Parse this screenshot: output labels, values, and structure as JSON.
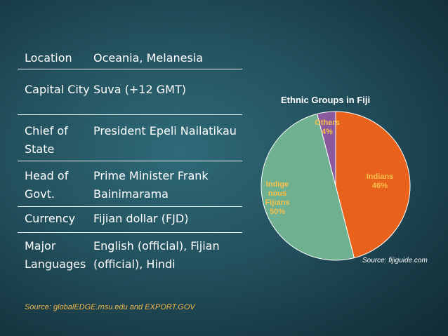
{
  "info": {
    "rows": [
      {
        "label": "Location",
        "value": "Oceania, Melanesia"
      },
      {
        "label": "Capital City",
        "value": "Suva (+12 GMT)"
      },
      {
        "label": "Chief of State",
        "value": "President Epeli Nailatikau"
      },
      {
        "label": "Head of Govt.",
        "value": "Prime Minister Frank Bainimarama"
      },
      {
        "label": "Currency",
        "value": "Fijian dollar (FJD)"
      },
      {
        "label": "Major Languages",
        "value": "English (official), Fijian (official), Hindi"
      }
    ],
    "source": "Source: globalEDGE.msu.edu and EXPORT.GOV"
  },
  "chart_data": {
    "type": "pie",
    "title": "Ethnic Groups in Fiji",
    "slices": [
      {
        "label": "Indians",
        "value": 46,
        "display": "46%",
        "color": "#e8621c",
        "label_color": "#f6c04a"
      },
      {
        "label": "Indigenous Fijians",
        "value": 50,
        "display": "50%",
        "color": "#6fb091",
        "label_color": "#f6c04a"
      },
      {
        "label": "Others",
        "value": 4,
        "display": "4%",
        "color": "#8a5a9d",
        "label_color": "#f6c04a"
      }
    ],
    "source": "Source: fijiguide.com"
  }
}
